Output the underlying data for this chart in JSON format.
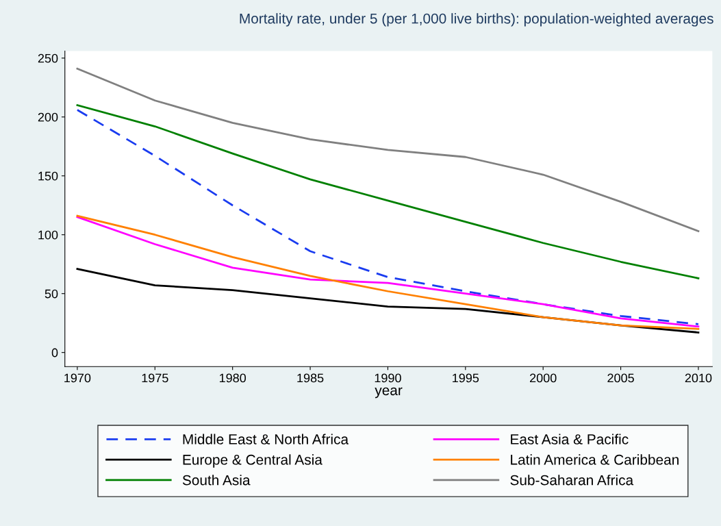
{
  "chart_data": {
    "type": "line",
    "title": "Mortality rate, under 5 (per 1,000 live births): population-weighted averages",
    "xlabel": "year",
    "x": [
      1970,
      1975,
      1980,
      1985,
      1990,
      1995,
      2000,
      2005,
      2010
    ],
    "series": [
      {
        "name": "Middle East & North Africa",
        "color": "#1a3cf0",
        "line_style": "dashed",
        "values": [
          206,
          167,
          125,
          86,
          64,
          52,
          41,
          31,
          24
        ]
      },
      {
        "name": "East Asia & Pacific",
        "color": "#ff00ff",
        "values": [
          115,
          92,
          72,
          62,
          59,
          50,
          41,
          29,
          22
        ]
      },
      {
        "name": "Europe & Central Asia",
        "color": "#000000",
        "values": [
          71,
          57,
          53,
          46,
          39,
          37,
          30,
          23,
          17
        ]
      },
      {
        "name": "Latin America & Caribbean",
        "color": "#ff8000",
        "values": [
          116,
          100,
          81,
          65,
          52,
          41,
          30,
          23,
          20
        ]
      },
      {
        "name": "South Asia",
        "color": "#008000",
        "values": [
          210,
          192,
          169,
          147,
          129,
          111,
          93,
          77,
          63
        ]
      },
      {
        "name": "Sub-Saharan Africa",
        "color": "#808080",
        "values": [
          241,
          214,
          195,
          181,
          172,
          166,
          151,
          128,
          103
        ]
      }
    ],
    "xlim": [
      1969.2,
      2010.9
    ],
    "ylim": [
      -12,
      256
    ],
    "xticks": [
      1970,
      1975,
      1980,
      1985,
      1990,
      1995,
      2000,
      2005,
      2010
    ],
    "yticks": [
      0,
      50,
      100,
      150,
      200,
      250
    ],
    "grid": false,
    "legend": "bottom",
    "marker": "none",
    "line_style": "solid"
  }
}
